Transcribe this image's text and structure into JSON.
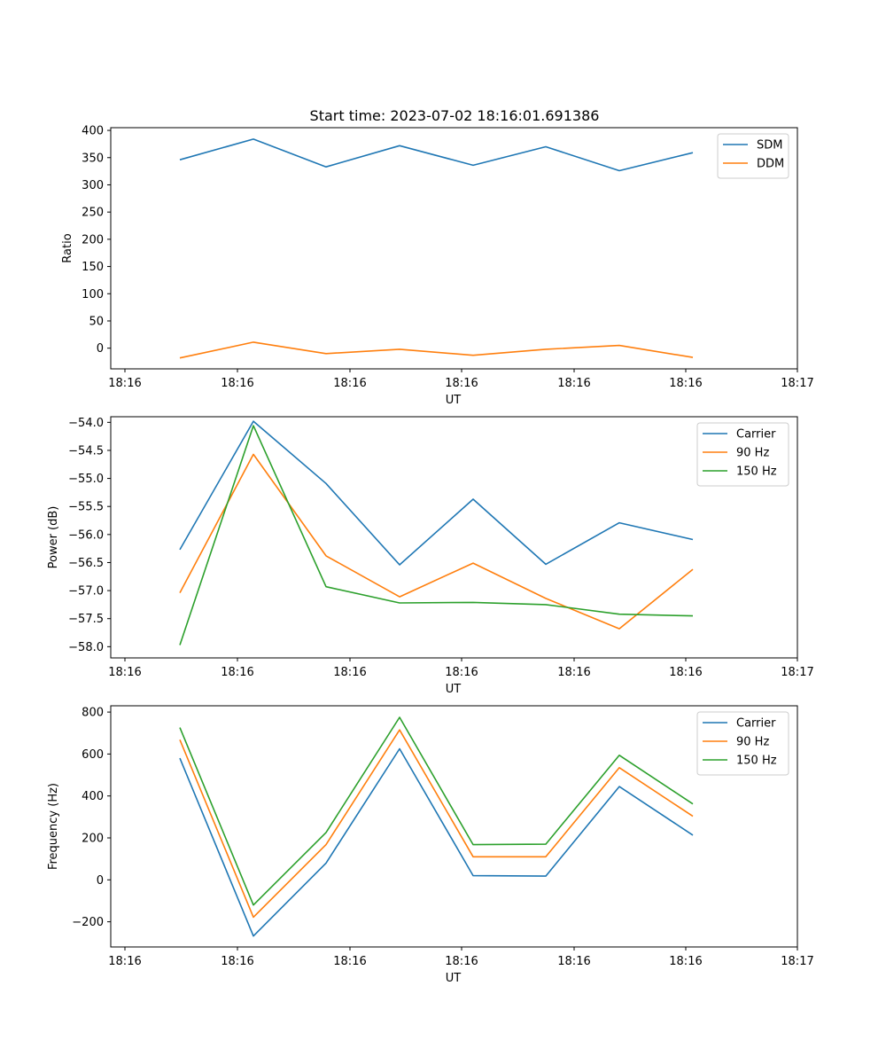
{
  "chart_data": [
    {
      "type": "line",
      "title": "Start time: 2023-07-02 18:16:01.691386",
      "xlabel": "UT",
      "ylabel": "Ratio",
      "x_ticks": [
        "18:16",
        "18:16",
        "18:16",
        "18:16",
        "18:16",
        "18:16",
        "18:17"
      ],
      "y_ticks": [
        "400",
        "350",
        "300",
        "250",
        "200",
        "150",
        "100",
        "50",
        "0"
      ],
      "y_tick_values": [
        400,
        350,
        300,
        250,
        200,
        150,
        100,
        50,
        0
      ],
      "ylim": [
        -38,
        405
      ],
      "legend": "top-right",
      "series": [
        {
          "name": "SDM",
          "color": "#1f77b4",
          "values": [
            346,
            384,
            333,
            372,
            336,
            370,
            326,
            359
          ]
        },
        {
          "name": "DDM",
          "color": "#ff7f0e",
          "values": [
            -18,
            11,
            -10,
            -2,
            -13,
            -2,
            5,
            -17
          ]
        }
      ]
    },
    {
      "type": "line",
      "title": "",
      "xlabel": "UT",
      "ylabel": "Power (dB)",
      "x_ticks": [
        "18:16",
        "18:16",
        "18:16",
        "18:16",
        "18:16",
        "18:16",
        "18:17"
      ],
      "y_ticks": [
        "−54.0",
        "−54.5",
        "−55.0",
        "−55.5",
        "−56.0",
        "−56.5",
        "−57.0",
        "−57.5",
        "−58.0"
      ],
      "y_tick_values": [
        -54.0,
        -54.5,
        -55.0,
        -55.5,
        -56.0,
        -56.5,
        -57.0,
        -57.5,
        -58.0
      ],
      "ylim": [
        -58.2,
        -53.9
      ],
      "legend": "top-right",
      "series": [
        {
          "name": "Carrier",
          "color": "#1f77b4",
          "values": [
            -56.27,
            -53.98,
            -55.09,
            -56.54,
            -55.37,
            -56.53,
            -55.79,
            -56.09
          ]
        },
        {
          "name": "90 Hz",
          "color": "#ff7f0e",
          "values": [
            -57.04,
            -54.57,
            -56.38,
            -57.11,
            -56.51,
            -57.14,
            -57.68,
            -56.62
          ]
        },
        {
          "name": "150 Hz",
          "color": "#2ca02c",
          "values": [
            -57.97,
            -54.06,
            -56.93,
            -57.22,
            -57.21,
            -57.25,
            -57.42,
            -57.45
          ]
        }
      ]
    },
    {
      "type": "line",
      "title": "",
      "xlabel": "UT",
      "ylabel": "Frequency (Hz)",
      "x_ticks": [
        "18:16",
        "18:16",
        "18:16",
        "18:16",
        "18:16",
        "18:16",
        "18:17"
      ],
      "y_ticks": [
        "800",
        "600",
        "400",
        "200",
        "0",
        "−200"
      ],
      "y_tick_values": [
        800,
        600,
        400,
        200,
        0,
        -200
      ],
      "ylim": [
        -320,
        830
      ],
      "legend": "top-right",
      "series": [
        {
          "name": "Carrier",
          "color": "#1f77b4",
          "values": [
            580,
            -268,
            80,
            625,
            20,
            18,
            445,
            213
          ]
        },
        {
          "name": "90 Hz",
          "color": "#ff7f0e",
          "values": [
            668,
            -178,
            168,
            715,
            110,
            110,
            535,
            303
          ]
        },
        {
          "name": "150 Hz",
          "color": "#2ca02c",
          "values": [
            726,
            -120,
            226,
            775,
            168,
            170,
            594,
            362
          ]
        }
      ]
    }
  ]
}
